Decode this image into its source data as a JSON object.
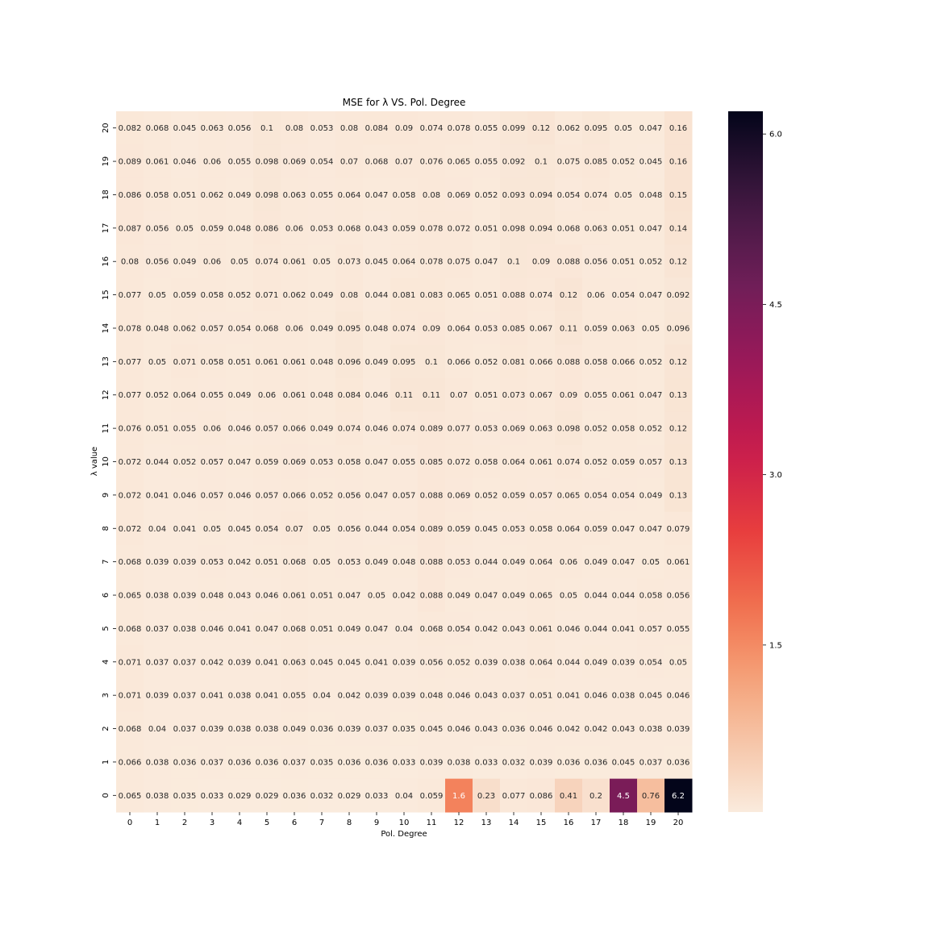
{
  "chart_data": {
    "type": "heatmap",
    "title": "MSE for λ VS. Pol. Degree",
    "xlabel": "Pol. Degree",
    "ylabel": "λ value",
    "x_categories": [
      "0",
      "1",
      "2",
      "3",
      "4",
      "5",
      "6",
      "7",
      "8",
      "9",
      "10",
      "11",
      "12",
      "13",
      "14",
      "15",
      "16",
      "17",
      "18",
      "19",
      "20"
    ],
    "y_categories": [
      "20",
      "19",
      "18",
      "17",
      "16",
      "15",
      "14",
      "13",
      "12",
      "11",
      "10",
      "9",
      "8",
      "7",
      "6",
      "5",
      "4",
      "3",
      "2",
      "1",
      "0"
    ],
    "values": [
      [
        "0.082",
        "0.068",
        "0.045",
        "0.063",
        "0.056",
        "0.1",
        "0.08",
        "0.053",
        "0.08",
        "0.084",
        "0.09",
        "0.074",
        "0.078",
        "0.055",
        "0.099",
        "0.12",
        "0.062",
        "0.095",
        "0.05",
        "0.047",
        "0.16"
      ],
      [
        "0.089",
        "0.061",
        "0.046",
        "0.06",
        "0.055",
        "0.098",
        "0.069",
        "0.054",
        "0.07",
        "0.068",
        "0.07",
        "0.076",
        "0.065",
        "0.055",
        "0.092",
        "0.1",
        "0.075",
        "0.085",
        "0.052",
        "0.045",
        "0.16"
      ],
      [
        "0.086",
        "0.058",
        "0.051",
        "0.062",
        "0.049",
        "0.098",
        "0.063",
        "0.055",
        "0.064",
        "0.047",
        "0.058",
        "0.08",
        "0.069",
        "0.052",
        "0.093",
        "0.094",
        "0.054",
        "0.074",
        "0.05",
        "0.048",
        "0.15"
      ],
      [
        "0.087",
        "0.056",
        "0.05",
        "0.059",
        "0.048",
        "0.086",
        "0.06",
        "0.053",
        "0.068",
        "0.043",
        "0.059",
        "0.078",
        "0.072",
        "0.051",
        "0.098",
        "0.094",
        "0.068",
        "0.063",
        "0.051",
        "0.047",
        "0.14"
      ],
      [
        "0.08",
        "0.056",
        "0.049",
        "0.06",
        "0.05",
        "0.074",
        "0.061",
        "0.05",
        "0.073",
        "0.045",
        "0.064",
        "0.078",
        "0.075",
        "0.047",
        "0.1",
        "0.09",
        "0.088",
        "0.056",
        "0.051",
        "0.052",
        "0.12"
      ],
      [
        "0.077",
        "0.05",
        "0.059",
        "0.058",
        "0.052",
        "0.071",
        "0.062",
        "0.049",
        "0.08",
        "0.044",
        "0.081",
        "0.083",
        "0.065",
        "0.051",
        "0.088",
        "0.074",
        "0.12",
        "0.06",
        "0.054",
        "0.047",
        "0.092"
      ],
      [
        "0.078",
        "0.048",
        "0.062",
        "0.057",
        "0.054",
        "0.068",
        "0.06",
        "0.049",
        "0.095",
        "0.048",
        "0.074",
        "0.09",
        "0.064",
        "0.053",
        "0.085",
        "0.067",
        "0.11",
        "0.059",
        "0.063",
        "0.05",
        "0.096"
      ],
      [
        "0.077",
        "0.05",
        "0.071",
        "0.058",
        "0.051",
        "0.061",
        "0.061",
        "0.048",
        "0.096",
        "0.049",
        "0.095",
        "0.1",
        "0.066",
        "0.052",
        "0.081",
        "0.066",
        "0.088",
        "0.058",
        "0.066",
        "0.052",
        "0.12"
      ],
      [
        "0.077",
        "0.052",
        "0.064",
        "0.055",
        "0.049",
        "0.06",
        "0.061",
        "0.048",
        "0.084",
        "0.046",
        "0.11",
        "0.11",
        "0.07",
        "0.051",
        "0.073",
        "0.067",
        "0.09",
        "0.055",
        "0.061",
        "0.047",
        "0.13"
      ],
      [
        "0.076",
        "0.051",
        "0.055",
        "0.06",
        "0.046",
        "0.057",
        "0.066",
        "0.049",
        "0.074",
        "0.046",
        "0.074",
        "0.089",
        "0.077",
        "0.053",
        "0.069",
        "0.063",
        "0.098",
        "0.052",
        "0.058",
        "0.052",
        "0.12"
      ],
      [
        "0.072",
        "0.044",
        "0.052",
        "0.057",
        "0.047",
        "0.059",
        "0.069",
        "0.053",
        "0.058",
        "0.047",
        "0.055",
        "0.085",
        "0.072",
        "0.058",
        "0.064",
        "0.061",
        "0.074",
        "0.052",
        "0.059",
        "0.057",
        "0.13"
      ],
      [
        "0.072",
        "0.041",
        "0.046",
        "0.057",
        "0.046",
        "0.057",
        "0.066",
        "0.052",
        "0.056",
        "0.047",
        "0.057",
        "0.088",
        "0.069",
        "0.052",
        "0.059",
        "0.057",
        "0.065",
        "0.054",
        "0.054",
        "0.049",
        "0.13"
      ],
      [
        "0.072",
        "0.04",
        "0.041",
        "0.05",
        "0.045",
        "0.054",
        "0.07",
        "0.05",
        "0.056",
        "0.044",
        "0.054",
        "0.089",
        "0.059",
        "0.045",
        "0.053",
        "0.058",
        "0.064",
        "0.059",
        "0.047",
        "0.047",
        "0.079"
      ],
      [
        "0.068",
        "0.039",
        "0.039",
        "0.053",
        "0.042",
        "0.051",
        "0.068",
        "0.05",
        "0.053",
        "0.049",
        "0.048",
        "0.088",
        "0.053",
        "0.044",
        "0.049",
        "0.064",
        "0.06",
        "0.049",
        "0.047",
        "0.05",
        "0.061"
      ],
      [
        "0.065",
        "0.038",
        "0.039",
        "0.048",
        "0.043",
        "0.046",
        "0.061",
        "0.051",
        "0.047",
        "0.05",
        "0.042",
        "0.088",
        "0.049",
        "0.047",
        "0.049",
        "0.065",
        "0.05",
        "0.044",
        "0.044",
        "0.058",
        "0.056"
      ],
      [
        "0.068",
        "0.037",
        "0.038",
        "0.046",
        "0.041",
        "0.047",
        "0.068",
        "0.051",
        "0.049",
        "0.047",
        "0.04",
        "0.068",
        "0.054",
        "0.042",
        "0.043",
        "0.061",
        "0.046",
        "0.044",
        "0.041",
        "0.057",
        "0.055"
      ],
      [
        "0.071",
        "0.037",
        "0.037",
        "0.042",
        "0.039",
        "0.041",
        "0.063",
        "0.045",
        "0.045",
        "0.041",
        "0.039",
        "0.056",
        "0.052",
        "0.039",
        "0.038",
        "0.064",
        "0.044",
        "0.049",
        "0.039",
        "0.054",
        "0.05"
      ],
      [
        "0.071",
        "0.039",
        "0.037",
        "0.041",
        "0.038",
        "0.041",
        "0.055",
        "0.04",
        "0.042",
        "0.039",
        "0.039",
        "0.048",
        "0.046",
        "0.043",
        "0.037",
        "0.051",
        "0.041",
        "0.046",
        "0.038",
        "0.045",
        "0.046"
      ],
      [
        "0.068",
        "0.04",
        "0.037",
        "0.039",
        "0.038",
        "0.038",
        "0.049",
        "0.036",
        "0.039",
        "0.037",
        "0.035",
        "0.045",
        "0.046",
        "0.043",
        "0.036",
        "0.046",
        "0.042",
        "0.042",
        "0.043",
        "0.038",
        "0.039"
      ],
      [
        "0.066",
        "0.038",
        "0.036",
        "0.037",
        "0.036",
        "0.036",
        "0.037",
        "0.035",
        "0.036",
        "0.036",
        "0.033",
        "0.039",
        "0.038",
        "0.033",
        "0.032",
        "0.039",
        "0.036",
        "0.036",
        "0.045",
        "0.037",
        "0.036"
      ],
      [
        "0.065",
        "0.038",
        "0.035",
        "0.033",
        "0.029",
        "0.029",
        "0.036",
        "0.032",
        "0.029",
        "0.033",
        "0.04",
        "0.059",
        "1.6",
        "0.23",
        "0.077",
        "0.086",
        "0.41",
        "0.2",
        "4.5",
        "0.76",
        "6.2"
      ]
    ],
    "value_range": [
      0,
      6.2
    ],
    "colormap": "rocket_r",
    "colorbar": {
      "ticks": [
        "1.5",
        "3.0",
        "4.5",
        "6.0"
      ],
      "range": [
        0.029,
        6.2
      ]
    },
    "grid": false,
    "annotations": true
  }
}
